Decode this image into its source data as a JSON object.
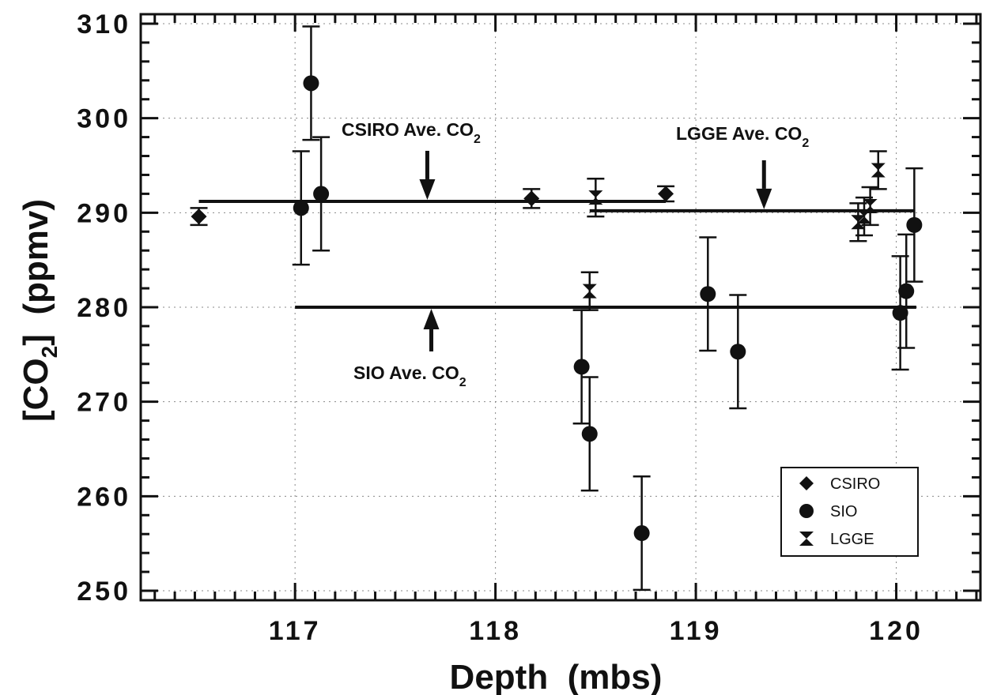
{
  "chart_data": {
    "type": "scatter",
    "xlabel": "Depth  (mbs)",
    "ylabel": {
      "pre": "[CO",
      "sub": "2",
      "post": "]  (ppmv)"
    },
    "xlim": [
      116.23,
      120.42
    ],
    "ylim": [
      249,
      311
    ],
    "xticks": [
      117,
      118,
      119,
      120
    ],
    "xtick_labels": [
      "117",
      "118",
      "119",
      "120"
    ],
    "yticks": [
      250,
      260,
      270,
      280,
      290,
      300,
      310
    ],
    "ytick_labels": [
      "250",
      "260",
      "270",
      "280",
      "290",
      "300",
      "310"
    ],
    "grid": true,
    "legend_position": "bottom-right",
    "series": [
      {
        "name": "CSIRO",
        "marker": "diamond",
        "points": [
          {
            "x": 116.52,
            "y": 289.6,
            "err": 0.9
          },
          {
            "x": 118.18,
            "y": 291.5,
            "err": 1.0
          },
          {
            "x": 118.85,
            "y": 292.0,
            "err": 0.8
          }
        ]
      },
      {
        "name": "SIO",
        "marker": "circle",
        "points": [
          {
            "x": 117.03,
            "y": 290.5,
            "err": 6.0
          },
          {
            "x": 117.08,
            "y": 303.7,
            "err": 6.0
          },
          {
            "x": 117.13,
            "y": 292.0,
            "err": 6.0
          },
          {
            "x": 118.43,
            "y": 273.7,
            "err": 6.0
          },
          {
            "x": 118.47,
            "y": 266.6,
            "err": 6.0
          },
          {
            "x": 118.73,
            "y": 256.1,
            "err": 6.0
          },
          {
            "x": 119.06,
            "y": 281.4,
            "err": 6.0
          },
          {
            "x": 119.21,
            "y": 275.3,
            "err": 6.0
          },
          {
            "x": 120.02,
            "y": 279.4,
            "err": 6.0
          },
          {
            "x": 120.05,
            "y": 281.7,
            "err": 6.0
          },
          {
            "x": 120.09,
            "y": 288.7,
            "err": 6.0
          }
        ]
      },
      {
        "name": "LGGE",
        "marker": "bowtie",
        "points": [
          {
            "x": 118.47,
            "y": 281.7,
            "err": 2.0
          },
          {
            "x": 118.5,
            "y": 291.6,
            "err": 2.0
          },
          {
            "x": 119.81,
            "y": 289.0,
            "err": 2.0
          },
          {
            "x": 119.84,
            "y": 289.6,
            "err": 2.0
          },
          {
            "x": 119.87,
            "y": 290.7,
            "err": 2.0
          },
          {
            "x": 119.91,
            "y": 294.5,
            "err": 2.0
          }
        ]
      }
    ],
    "averages": [
      {
        "name": "CSIRO",
        "x": [
          116.52,
          118.85
        ],
        "y": 291.2
      },
      {
        "name": "LGGE",
        "x": [
          118.47,
          120.09
        ],
        "y": 290.2
      },
      {
        "name": "SIO",
        "x": [
          117.0,
          120.1
        ],
        "y": 280.0
      }
    ],
    "annotations": [
      {
        "pre": "CSIRO Ave. CO",
        "sub": "2",
        "x_at": 117.66,
        "arrow": "down"
      },
      {
        "pre": "LGGE Ave. CO",
        "sub": "2",
        "x_at": 119.34,
        "arrow": "down"
      },
      {
        "pre": "SIO Ave. CO",
        "sub": "2",
        "x_at": 117.68,
        "arrow": "up"
      }
    ],
    "legend": [
      "CSIRO",
      "SIO",
      "LGGE"
    ]
  }
}
